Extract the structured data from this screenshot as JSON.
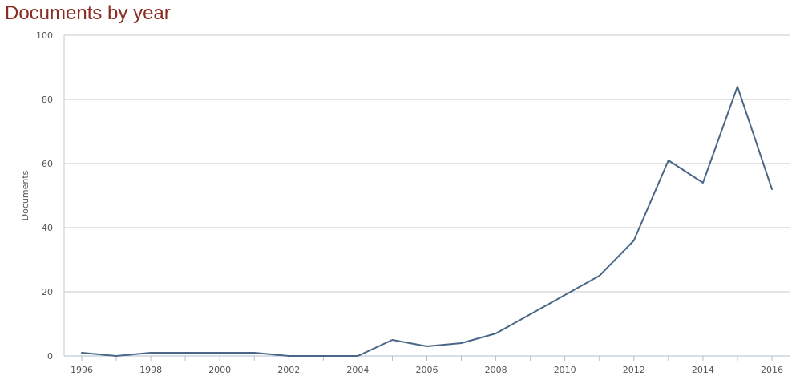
{
  "chart_data": {
    "type": "line",
    "title": "Documents by year",
    "xlabel": "",
    "ylabel": "Documents",
    "xlim": [
      1996,
      2016
    ],
    "ylim": [
      0,
      100
    ],
    "x_ticks": [
      "1996",
      "1998",
      "2000",
      "2002",
      "2004",
      "2006",
      "2008",
      "2010",
      "2012",
      "2014",
      "2016"
    ],
    "y_ticks": [
      "0",
      "20",
      "40",
      "60",
      "80",
      "100"
    ],
    "grid": true,
    "legend": "none",
    "series": [
      {
        "color": "#4a6787",
        "x": [
          1996,
          1997,
          1998,
          1999,
          2000,
          2001,
          2002,
          2003,
          2004,
          2005,
          2006,
          2007,
          2008,
          2009,
          2010,
          2011,
          2012,
          2013,
          2014,
          2015,
          2016
        ],
        "values": [
          1,
          0,
          1,
          1,
          1,
          1,
          0,
          0,
          0,
          5,
          3,
          4,
          7,
          13,
          19,
          25,
          36,
          61,
          54,
          84,
          52
        ]
      }
    ]
  }
}
